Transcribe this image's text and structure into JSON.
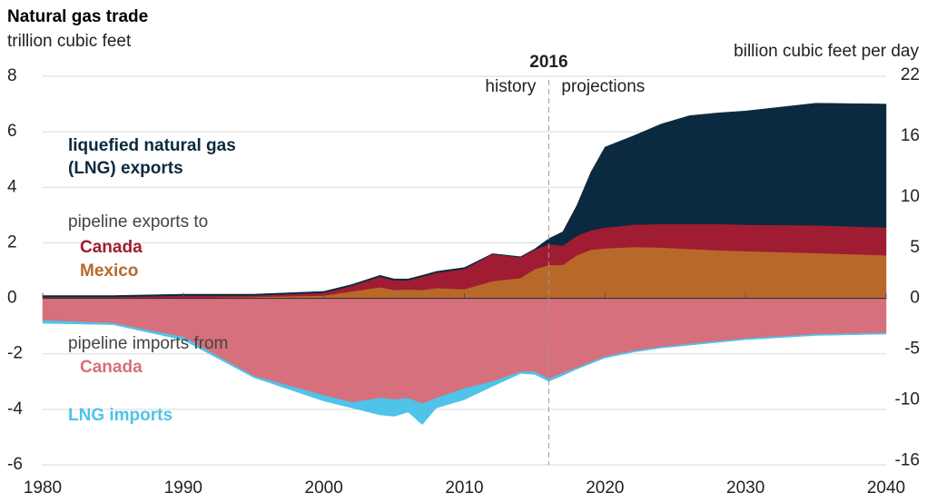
{
  "chart_data": {
    "type": "area",
    "title": "Natural gas trade",
    "y_label": "trillion cubic feet",
    "y2_label": "billion cubic feet per day",
    "divider": {
      "x": 2016,
      "label": "2016",
      "left_label": "history",
      "right_label": "projections"
    },
    "export_group_label": "pipeline exports to",
    "import_group_label": "pipeline imports from",
    "x": [
      1980,
      1985,
      1990,
      1995,
      2000,
      2002,
      2004,
      2005,
      2006,
      2007,
      2008,
      2010,
      2012,
      2014,
      2015,
      2016,
      2017,
      2018,
      2019,
      2020,
      2022,
      2024,
      2026,
      2028,
      2030,
      2035,
      2040
    ],
    "series": [
      {
        "name": "Mexico",
        "color": "#b8692a",
        "values": [
          0.0,
          0.0,
          0.02,
          0.05,
          0.1,
          0.25,
          0.4,
          0.3,
          0.32,
          0.3,
          0.37,
          0.33,
          0.62,
          0.73,
          1.05,
          1.2,
          1.2,
          1.55,
          1.75,
          1.8,
          1.85,
          1.83,
          1.78,
          1.73,
          1.7,
          1.63,
          1.55
        ]
      },
      {
        "name": "Canada",
        "color": "#a01c32",
        "values": [
          0.05,
          0.05,
          0.08,
          0.05,
          0.1,
          0.2,
          0.38,
          0.35,
          0.33,
          0.48,
          0.55,
          0.73,
          0.97,
          0.75,
          0.7,
          0.75,
          0.7,
          0.7,
          0.7,
          0.75,
          0.8,
          0.85,
          0.9,
          0.95,
          0.95,
          1.0,
          1.0
        ]
      },
      {
        "name": "liquefied natural gas (LNG) exports",
        "color": "#0b2a3f",
        "values": [
          0.05,
          0.05,
          0.05,
          0.05,
          0.05,
          0.05,
          0.05,
          0.05,
          0.05,
          0.05,
          0.05,
          0.05,
          0.02,
          0.02,
          0.03,
          0.2,
          0.5,
          1.1,
          2.1,
          2.9,
          3.2,
          3.6,
          3.9,
          4.0,
          4.1,
          4.4,
          4.45
        ]
      },
      {
        "name": "Canada",
        "color": "#d6707c",
        "values": [
          -0.8,
          -0.9,
          -1.4,
          -2.8,
          -3.5,
          -3.75,
          -3.6,
          -3.65,
          -3.6,
          -3.8,
          -3.6,
          -3.25,
          -3.0,
          -2.65,
          -2.65,
          -2.9,
          -2.7,
          -2.5,
          -2.3,
          -2.1,
          -1.9,
          -1.75,
          -1.65,
          -1.55,
          -1.45,
          -1.3,
          -1.25
        ]
      },
      {
        "name": "LNG imports",
        "color": "#4fc3ea",
        "values": [
          -0.1,
          -0.05,
          -0.1,
          -0.05,
          -0.2,
          -0.2,
          -0.6,
          -0.6,
          -0.5,
          -0.75,
          -0.35,
          -0.4,
          -0.17,
          -0.06,
          -0.09,
          -0.09,
          -0.08,
          -0.05,
          -0.05,
          -0.05,
          -0.04,
          -0.04,
          -0.04,
          -0.04,
          -0.04,
          -0.04,
          -0.04
        ]
      }
    ],
    "xlim": [
      1980,
      2040
    ],
    "xticks": [
      1980,
      1990,
      2000,
      2010,
      2020,
      2030,
      2040
    ],
    "ylim": [
      -6,
      8
    ],
    "yticks": [
      -6,
      -4,
      -2,
      0,
      2,
      4,
      6,
      8
    ],
    "y2lim": [
      -16.4,
      21.9
    ],
    "y2ticks": [
      -16,
      -10,
      -5,
      0,
      5,
      10,
      16,
      22
    ],
    "grid": true
  }
}
